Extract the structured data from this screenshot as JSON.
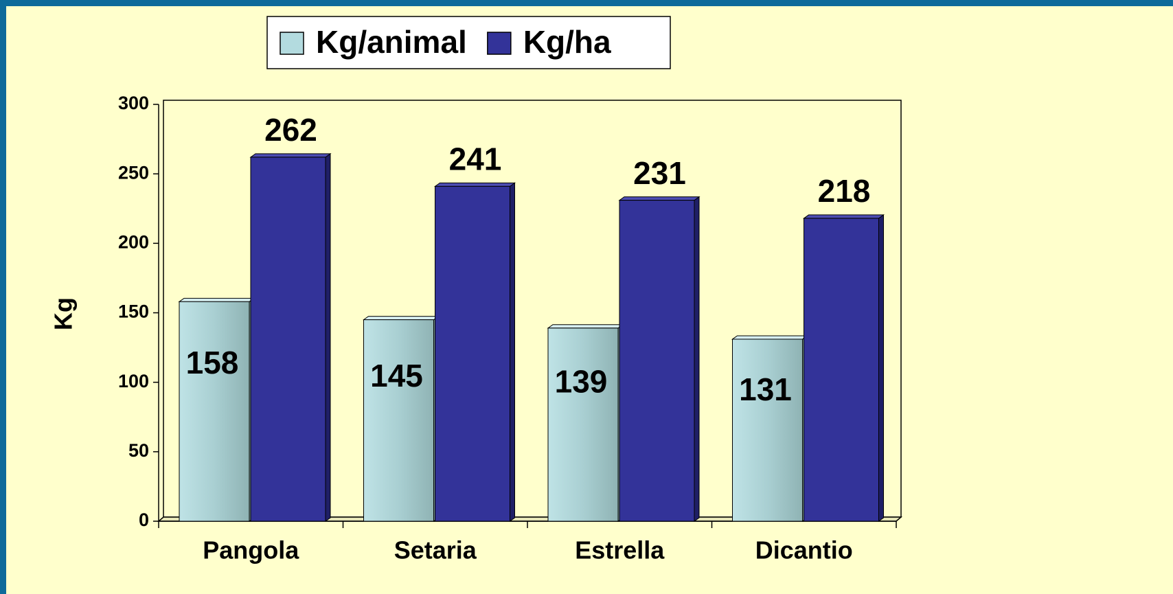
{
  "chart_data": {
    "type": "bar",
    "ylabel": "Kg",
    "categories": [
      "Pangola",
      "Setaria",
      "Estrella",
      "Dicantio"
    ],
    "series": [
      {
        "name": "Kg/animal",
        "color": "#b3dbdf",
        "values": [
          158,
          145,
          139,
          131
        ]
      },
      {
        "name": "Kg/ha",
        "color": "#333399",
        "values": [
          262,
          241,
          231,
          218
        ]
      }
    ],
    "ylim": [
      0,
      300
    ],
    "yticks": [
      0,
      50,
      100,
      150,
      200,
      250,
      300
    ],
    "legend": "top",
    "grid": false
  }
}
